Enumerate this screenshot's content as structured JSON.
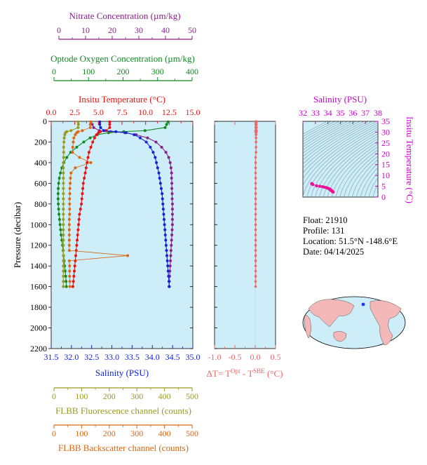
{
  "colors": {
    "nitrate": "#882288",
    "oxygen": "#118822",
    "temperature": "#ee1111",
    "salinity": "#1122dd",
    "fluorescence": "#999922",
    "backscatter": "#dd6611",
    "delta_t": "#ee6666",
    "ts_points": "#ee1199",
    "salinity_ts_axis": "#cc00cc",
    "panel_bg": "#cdeef8",
    "land": "#f5b8b8"
  },
  "info": {
    "float": "Float:  21910",
    "profile": "Profile:  131",
    "location": "Location:  51.5°N  -148.6°E",
    "date": "Date:  04/14/2025"
  },
  "chart_data": [
    {
      "type": "line",
      "id": "profile-panel",
      "ylabel": "Pressure (decibar)",
      "ylim": [
        2200,
        0
      ],
      "yticks": [
        0,
        200,
        400,
        600,
        800,
        1000,
        1200,
        1400,
        1600,
        1800,
        2000,
        2200
      ],
      "pressure": [
        5,
        30,
        60,
        90,
        100,
        110,
        130,
        160,
        200,
        250,
        300,
        350,
        400,
        450,
        500,
        550,
        600,
        650,
        700,
        750,
        800,
        850,
        900,
        950,
        1000,
        1050,
        1100,
        1150,
        1200,
        1250,
        1300,
        1350,
        1400,
        1450,
        1500,
        1550,
        1600
      ],
      "axes": [
        {
          "key": "nitrate",
          "title": "Nitrate Concentration (µm/kg)",
          "range": [
            0,
            50
          ],
          "ticks": [
            "0",
            "10",
            "20",
            "30",
            "40",
            "50"
          ],
          "tick_values": [
            0,
            10,
            20,
            30,
            40,
            50
          ],
          "values": [
            14,
            14.5,
            15,
            17,
            21,
            26,
            30,
            34,
            37,
            39,
            40.5,
            41.5,
            42,
            42.3,
            42.5,
            42.5,
            42.6,
            42.6,
            42.7,
            42.7,
            42.8,
            42.8,
            42.8,
            42.8,
            42.8,
            42.7,
            42.6,
            42.5,
            42.4,
            42.3,
            42.2,
            42.1,
            42,
            41.9,
            41.8,
            41.7,
            41.6
          ]
        },
        {
          "key": "oxygen",
          "title": "Optode Oxygen Concentration (µm/kg)",
          "range": [
            0,
            400
          ],
          "ticks": [
            "0",
            "100",
            "200",
            "300",
            "400"
          ],
          "tick_values": [
            0,
            100,
            200,
            300,
            400
          ],
          "values": [
            330,
            326,
            322,
            265,
            205,
            162,
            130,
            110,
            92,
            72,
            55,
            44,
            36,
            30,
            26,
            23,
            21,
            20,
            19.5,
            19.5,
            20,
            21,
            22,
            23.5,
            25,
            26.5,
            28,
            30,
            32,
            33.5,
            35,
            36.5,
            38,
            39.5,
            41,
            42,
            43
          ]
        },
        {
          "key": "temperature",
          "title": "Insitu Temperature (°C)",
          "range": [
            0,
            15
          ],
          "ticks": [
            "0.0",
            "2.5",
            "5.0",
            "7.5",
            "10.0",
            "12.5",
            "15.0"
          ],
          "tick_values": [
            0,
            2.5,
            5,
            7.5,
            10,
            12.5,
            15
          ],
          "values": [
            6.2,
            6.2,
            6.2,
            5.8,
            5.2,
            5.0,
            4.8,
            4.6,
            4.4,
            4.2,
            4.0,
            3.9,
            3.8,
            3.7,
            3.6,
            3.5,
            3.4,
            3.35,
            3.3,
            3.25,
            3.2,
            3.1,
            3.0,
            2.95,
            2.9,
            2.85,
            2.8,
            2.75,
            2.7,
            2.65,
            2.6,
            2.55,
            2.5,
            2.45,
            2.4,
            2.35,
            2.3
          ]
        },
        {
          "key": "salinity",
          "title": "Salinity (PSU)",
          "range": [
            31.5,
            35.0
          ],
          "ticks": [
            "31.5",
            "32.0",
            "32.5",
            "33.0",
            "33.5",
            "34.0",
            "34.5",
            "35.0"
          ],
          "tick_values": [
            31.5,
            32.0,
            32.5,
            33.0,
            33.5,
            34.0,
            34.5,
            35.0
          ],
          "values": [
            32.7,
            32.7,
            32.72,
            32.8,
            33.1,
            33.35,
            33.55,
            33.7,
            33.85,
            33.95,
            34.02,
            34.07,
            34.1,
            34.13,
            34.16,
            34.18,
            34.2,
            34.22,
            34.24,
            34.25,
            34.26,
            34.27,
            34.28,
            34.29,
            34.3,
            34.31,
            34.32,
            34.33,
            34.34,
            34.35,
            34.36,
            34.37,
            34.38,
            34.39,
            34.4,
            34.41,
            34.42
          ]
        },
        {
          "key": "fluorescence",
          "title": "FLBB Fluorescence channel (counts)",
          "range": [
            0,
            500
          ],
          "ticks": [
            "0",
            "100",
            "200",
            "300",
            "400",
            "500"
          ],
          "tick_values": [
            0,
            100,
            200,
            300,
            400,
            500
          ],
          "values": [
            95,
            96,
            95,
            70,
            55,
            50,
            48,
            46,
            45,
            44,
            44,
            44,
            43,
            43,
            43,
            43,
            43,
            43,
            43,
            43,
            43,
            43,
            43,
            43,
            43,
            43,
            43,
            43,
            43,
            43,
            43,
            43,
            43,
            43,
            43,
            43,
            43
          ]
        },
        {
          "key": "backscatter",
          "title": "FLBB Backscatter channel (counts)",
          "range": [
            0,
            500
          ],
          "ticks": [
            "0",
            "100",
            "200",
            "300",
            "400",
            "500"
          ],
          "tick_values": [
            0,
            100,
            200,
            300,
            400,
            500
          ],
          "values": [
            140,
            138,
            138,
            110,
            95,
            90,
            85,
            80,
            78,
            76,
            75,
            100,
            140,
            85,
            70,
            68,
            67,
            66,
            66,
            65,
            65,
            65,
            65,
            64,
            64,
            64,
            64,
            64,
            64,
            64,
            270,
            64,
            65,
            65,
            65,
            66,
            66
          ]
        }
      ]
    },
    {
      "type": "line",
      "id": "delta-t-panel",
      "xlabel_main": "ΔT= T",
      "xlabel_sup1": "Opt",
      "xlabel_mid": " - T",
      "xlabel_sup2": "SBE",
      "xlabel_end": " (°C)",
      "xlim": [
        -1.0,
        0.5
      ],
      "xticks": [
        "-1.0",
        "-0.5",
        "0.0",
        "0.5"
      ],
      "xtick_values": [
        -1.0,
        -0.5,
        0.0,
        0.5
      ],
      "ylim": [
        2200,
        0
      ],
      "values": [
        0.02,
        0.02,
        0.02,
        0.02,
        0.02,
        0.02,
        0.02,
        0.02,
        0.02,
        0.02,
        0.02,
        0.01,
        0.01,
        0.01,
        0.01,
        0.01,
        0.01,
        0.01,
        0.01,
        0.01,
        0.01,
        0.01,
        0.01,
        0.01,
        0.01,
        0.01,
        0.01,
        0.01,
        0.01,
        0.01,
        0.01,
        0.01,
        0.01,
        0.01,
        0.01,
        0.01,
        0.01
      ]
    },
    {
      "type": "scatter",
      "id": "ts-diagram",
      "xlabel": "Salinity (PSU)",
      "ylabel": "Insitu Temperature (°C)",
      "xlim": [
        32,
        38
      ],
      "ylim": [
        0,
        35
      ],
      "xticks": [
        "32",
        "33",
        "34",
        "35",
        "36",
        "37",
        "38"
      ],
      "xtick_values": [
        32,
        33,
        34,
        35,
        36,
        37,
        38
      ],
      "yticks": [
        "0",
        "5",
        "10",
        "15",
        "20",
        "25",
        "30",
        "35"
      ],
      "ytick_values": [
        0,
        5,
        10,
        15,
        20,
        25,
        30,
        35
      ],
      "grid": true
    }
  ]
}
